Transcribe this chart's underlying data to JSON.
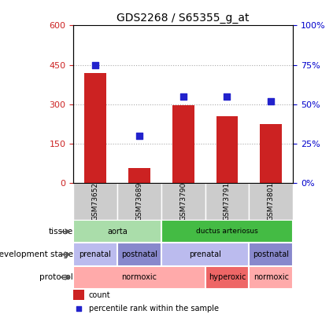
{
  "title": "GDS2268 / S65355_g_at",
  "samples": [
    "GSM73652",
    "GSM73689",
    "GSM73790",
    "GSM73791",
    "GSM73801"
  ],
  "counts": [
    420,
    55,
    295,
    255,
    225
  ],
  "percentiles": [
    75,
    30,
    55,
    55,
    52
  ],
  "ylim_left": [
    0,
    600
  ],
  "ylim_right": [
    0,
    100
  ],
  "yticks_left": [
    0,
    150,
    300,
    450,
    600
  ],
  "yticks_right": [
    0,
    25,
    50,
    75,
    100
  ],
  "bar_color": "#cc2222",
  "dot_color": "#2222cc",
  "tissue_row": [
    {
      "label": "aorta",
      "start": 0,
      "end": 2,
      "color": "#aaddaa"
    },
    {
      "label": "ductus arteriosus",
      "start": 2,
      "end": 5,
      "color": "#44bb44"
    }
  ],
  "dev_stage_row": [
    {
      "label": "prenatal",
      "start": 0,
      "end": 1,
      "color": "#bbbbee"
    },
    {
      "label": "postnatal",
      "start": 1,
      "end": 2,
      "color": "#8888cc"
    },
    {
      "label": "prenatal",
      "start": 2,
      "end": 4,
      "color": "#bbbbee"
    },
    {
      "label": "postnatal",
      "start": 4,
      "end": 5,
      "color": "#8888cc"
    }
  ],
  "protocol_row": [
    {
      "label": "normoxic",
      "start": 0,
      "end": 3,
      "color": "#ffaaaa"
    },
    {
      "label": "hyperoxic",
      "start": 3,
      "end": 4,
      "color": "#ee6666"
    },
    {
      "label": "normoxic",
      "start": 4,
      "end": 5,
      "color": "#ffaaaa"
    }
  ],
  "row_labels": [
    "tissue",
    "development stage",
    "protocol"
  ],
  "legend_items": [
    {
      "color": "#cc2222",
      "label": "count"
    },
    {
      "color": "#2222cc",
      "label": "percentile rank within the sample"
    }
  ],
  "tick_label_color_left": "#cc2222",
  "tick_label_color_right": "#0000cc",
  "xlabel_color": "#333333",
  "grid_color": "#aaaaaa",
  "sample_bg_color": "#cccccc"
}
